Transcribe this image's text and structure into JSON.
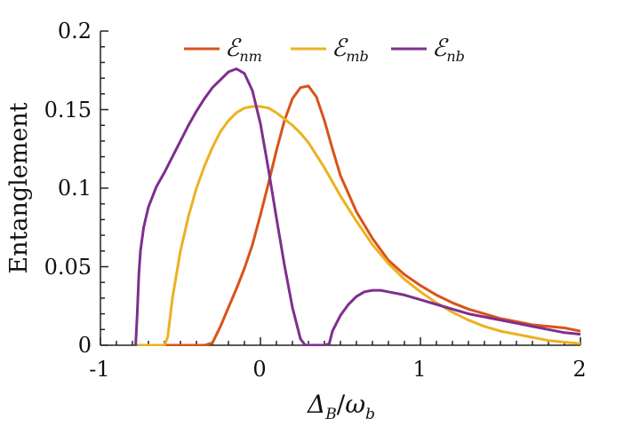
{
  "chart_data": {
    "type": "line",
    "xlabel": "Δ_B/ω_b",
    "ylabel": "Entanglement",
    "xlim": [
      -1,
      2
    ],
    "ylim": [
      0,
      0.2
    ],
    "xticks": [
      "-1",
      "0",
      "1",
      "2"
    ],
    "yticks": [
      "0",
      "0.05",
      "0.1",
      "0.15",
      "0.2"
    ],
    "grid": false,
    "legend_position": "top",
    "series": [
      {
        "name": "E_nm",
        "color": "#D95319",
        "x": [
          -0.6,
          -0.55,
          -0.5,
          -0.45,
          -0.4,
          -0.35,
          -0.3,
          -0.25,
          -0.2,
          -0.15,
          -0.1,
          -0.05,
          0.0,
          0.05,
          0.1,
          0.15,
          0.2,
          0.25,
          0.3,
          0.35,
          0.4,
          0.45,
          0.5,
          0.6,
          0.7,
          0.8,
          0.9,
          1.0,
          1.1,
          1.2,
          1.3,
          1.4,
          1.5,
          1.6,
          1.7,
          1.8,
          1.9,
          2.0
        ],
        "y": [
          0,
          0,
          0,
          0,
          0,
          0.0,
          0.0015,
          0.012,
          0.024,
          0.036,
          0.049,
          0.064,
          0.083,
          0.103,
          0.124,
          0.143,
          0.157,
          0.164,
          0.165,
          0.158,
          0.143,
          0.125,
          0.108,
          0.085,
          0.068,
          0.054,
          0.045,
          0.038,
          0.032,
          0.027,
          0.023,
          0.02,
          0.017,
          0.015,
          0.013,
          0.012,
          0.011,
          0.009
        ]
      },
      {
        "name": "E_mb",
        "color": "#EDB120",
        "x": [
          -0.77,
          -0.7,
          -0.65,
          -0.6,
          -0.58,
          -0.55,
          -0.5,
          -0.45,
          -0.4,
          -0.35,
          -0.3,
          -0.25,
          -0.2,
          -0.15,
          -0.1,
          -0.05,
          0.0,
          0.05,
          0.1,
          0.15,
          0.2,
          0.25,
          0.3,
          0.35,
          0.4,
          0.45,
          0.5,
          0.6,
          0.7,
          0.8,
          0.9,
          1.0,
          1.1,
          1.2,
          1.3,
          1.4,
          1.5,
          1.6,
          1.7,
          1.8,
          1.9,
          2.0
        ],
        "y": [
          0,
          0,
          0,
          0,
          0.005,
          0.03,
          0.06,
          0.082,
          0.1,
          0.114,
          0.126,
          0.136,
          0.143,
          0.148,
          0.151,
          0.152,
          0.152,
          0.151,
          0.148,
          0.144,
          0.14,
          0.135,
          0.129,
          0.121,
          0.113,
          0.104,
          0.095,
          0.079,
          0.064,
          0.052,
          0.042,
          0.034,
          0.027,
          0.021,
          0.016,
          0.012,
          0.009,
          0.007,
          0.005,
          0.003,
          0.002,
          0.001
        ]
      },
      {
        "name": "E_nb",
        "color": "#7E2F8E",
        "x": [
          -0.78,
          -0.77,
          -0.76,
          -0.75,
          -0.73,
          -0.7,
          -0.65,
          -0.6,
          -0.55,
          -0.5,
          -0.45,
          -0.4,
          -0.35,
          -0.3,
          -0.25,
          -0.2,
          -0.15,
          -0.1,
          -0.05,
          0.0,
          0.05,
          0.1,
          0.15,
          0.2,
          0.25,
          0.28,
          0.3,
          0.35,
          0.4,
          0.43,
          0.45,
          0.5,
          0.55,
          0.6,
          0.65,
          0.7,
          0.75,
          0.8,
          0.9,
          1.0,
          1.1,
          1.2,
          1.3,
          1.4,
          1.5,
          1.6,
          1.7,
          1.8,
          1.9,
          2.0
        ],
        "y": [
          0,
          0.02,
          0.045,
          0.06,
          0.075,
          0.088,
          0.101,
          0.11,
          0.12,
          0.13,
          0.14,
          0.149,
          0.157,
          0.164,
          0.169,
          0.174,
          0.176,
          0.173,
          0.162,
          0.141,
          0.112,
          0.081,
          0.051,
          0.024,
          0.004,
          0.0,
          0.0,
          0.0,
          0.0,
          0.001,
          0.009,
          0.019,
          0.026,
          0.031,
          0.034,
          0.035,
          0.035,
          0.034,
          0.032,
          0.029,
          0.026,
          0.023,
          0.02,
          0.018,
          0.016,
          0.014,
          0.012,
          0.01,
          0.008,
          0.007
        ]
      }
    ]
  }
}
